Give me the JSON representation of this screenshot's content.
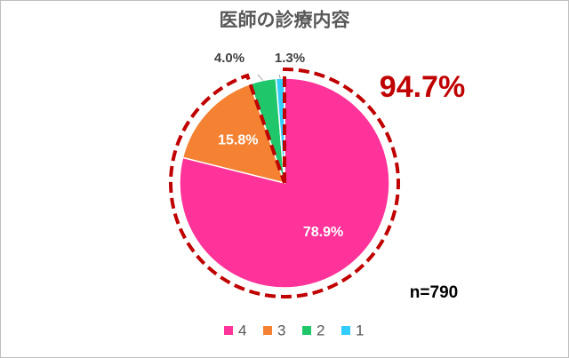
{
  "chart_data": {
    "type": "pie",
    "title": "医師の診療内容",
    "categories": [
      "4",
      "3",
      "2",
      "1"
    ],
    "values": [
      78.9,
      15.8,
      4.0,
      1.3
    ],
    "value_labels": [
      "78.9%",
      "15.8%",
      "4.0%",
      "1.3%"
    ],
    "colors": [
      "#ff3399",
      "#f58233",
      "#1fc76a",
      "#33ccff"
    ],
    "annotations": [
      "94.7%",
      "n=790"
    ],
    "legend": "bottom"
  }
}
